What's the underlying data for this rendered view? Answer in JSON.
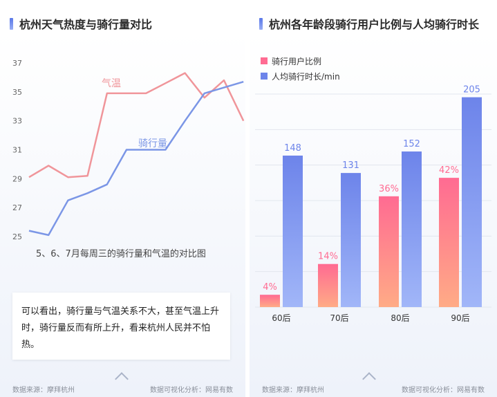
{
  "left_panel": {
    "title": "杭州天气热度与骑行量对比",
    "caption": "5、6、7月每周三的骑行量和气温的对比图",
    "note": "可以看出，骑行量与气温关系不大，甚至气温上升时，骑行量反而有所上升，看来杭州人民并不怕热。",
    "source": "数据来源：摩拜杭州",
    "credit": "数据可视化分析：网易有数"
  },
  "right_panel": {
    "title": "杭州各年龄段骑行用户比例与人均骑行时长",
    "source": "数据来源：摩拜杭州",
    "credit": "数据可视化分析：网易有数"
  },
  "colors": {
    "temperature": "#f0959a",
    "ridership": "#7b96e6",
    "ratio_top": "#ff6b92",
    "ratio_bottom": "#ffab86",
    "duration_top": "#6d84ea",
    "duration_bottom": "#a1b6f8"
  },
  "chart_data": [
    {
      "type": "line",
      "yticks": [
        "25",
        "27",
        "29",
        "31",
        "33",
        "35",
        "37"
      ],
      "ylim": [
        25,
        37
      ],
      "grid": false,
      "series": [
        {
          "name": "气温",
          "values": [
            29.1,
            29.9,
            29.1,
            29.2,
            34.9,
            34.9,
            34.9,
            35.6,
            36.3,
            34.6,
            35.8,
            33.0
          ]
        },
        {
          "name": "骑行量",
          "values": [
            25.4,
            25.1,
            27.5,
            28.0,
            28.6,
            31.0,
            31.0,
            31.0,
            33.0,
            34.9,
            35.3,
            35.7
          ]
        }
      ]
    },
    {
      "type": "bar",
      "categories": [
        "60后",
        "70后",
        "80后",
        "90后"
      ],
      "grid": true,
      "legend": "top-left",
      "series": [
        {
          "name": "骑行用户比例",
          "values": [
            4,
            14,
            36,
            42
          ],
          "labels": [
            "4%",
            "14%",
            "36%",
            "42%"
          ]
        },
        {
          "name": "人均骑行时长/min",
          "values": [
            148,
            131,
            152,
            205
          ],
          "labels": [
            "148",
            "131",
            "152",
            "205"
          ]
        }
      ]
    }
  ]
}
